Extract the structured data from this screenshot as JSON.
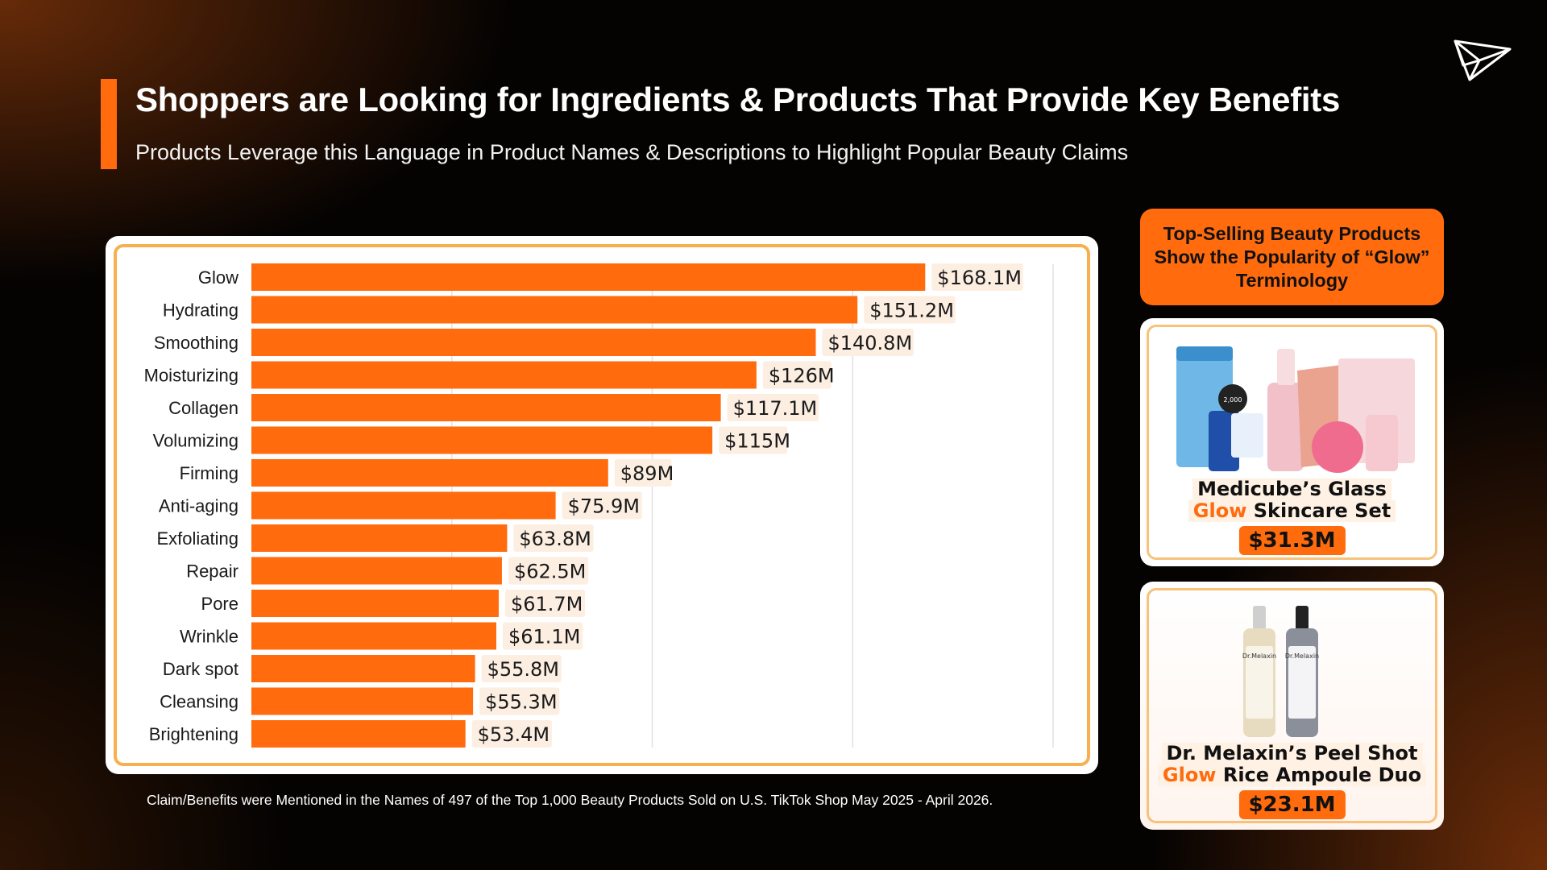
{
  "header": {
    "title": "Shoppers are Looking for Ingredients & Products That Provide Key Benefits",
    "subtitle": "Products Leverage this Language in Product Names & Descriptions to Highlight Popular Beauty Claims"
  },
  "footnote": "Claim/Benefits were Mentioned in the Names of 497 of the Top 1,000 Beauty Products Sold on U.S. TikTok Shop May 2025 - April 2026.",
  "side_panel": {
    "header": "Top-Selling Beauty Products Show the Popularity of “Glow” Terminology",
    "products": [
      {
        "name_line1": "Medicube’s Glass",
        "name_highlight": "Glow",
        "name_line2_rest": "Skincare Set",
        "price": "$31.3M"
      },
      {
        "name_line1": "Dr. Melaxin’s Peel Shot",
        "name_highlight": "Glow",
        "name_line2_rest": "Rice Ampoule Duo",
        "price": "$23.1M"
      }
    ]
  },
  "colors": {
    "accent": "#ff6b0d",
    "panel_border": "#f7b04e",
    "label_bg": "#fdeee2"
  },
  "icons": {
    "logo": "paper-plane-logo-icon"
  },
  "chart_data": {
    "type": "bar",
    "orientation": "horizontal",
    "categories": [
      "Glow",
      "Hydrating",
      "Smoothing",
      "Moisturizing",
      "Collagen",
      "Volumizing",
      "Firming",
      "Anti-aging",
      "Exfoliating",
      "Repair",
      "Pore",
      "Wrinkle",
      "Dark spot",
      "Cleansing",
      "Brightening"
    ],
    "values": [
      168.1,
      151.2,
      140.8,
      126,
      117.1,
      115,
      89,
      75.9,
      63.8,
      62.5,
      61.7,
      61.1,
      55.8,
      55.3,
      53.4
    ],
    "value_labels": [
      "$168.1M",
      "$151.2M",
      "$140.8M",
      "$126M",
      "$117.1M",
      "$115M",
      "$89M",
      "$75.9M",
      "$63.8M",
      "$62.5M",
      "$61.7M",
      "$61.1M",
      "$55.8M",
      "$55.3M",
      "$53.4M"
    ],
    "xlim": [
      0,
      200
    ],
    "grid": true,
    "title": "",
    "xlabel": "",
    "ylabel": ""
  }
}
